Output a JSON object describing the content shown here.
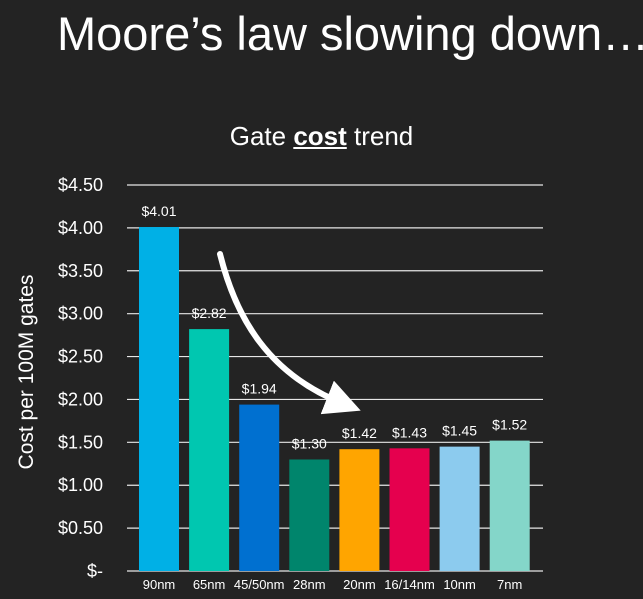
{
  "slide": {
    "title": "Moore’s law slowing down…"
  },
  "chart_data": {
    "type": "bar",
    "title_parts": [
      "Gate ",
      "cost",
      " trend"
    ],
    "title_emphasis": "cost",
    "xlabel": "",
    "ylabel": "Cost per 100M gates",
    "categories": [
      "90nm",
      "65nm",
      "45/50nm",
      "28nm",
      "20nm",
      "16/14nm",
      "10nm",
      "7nm"
    ],
    "values": [
      4.01,
      2.82,
      1.94,
      1.3,
      1.42,
      1.43,
      1.45,
      1.52
    ],
    "data_labels": [
      "$4.01",
      "$2.82",
      "$1.94",
      "$1.30",
      "$1.42",
      "$1.43",
      "$1.45",
      "$1.52"
    ],
    "colors": [
      "#00b0e6",
      "#00c7b0",
      "#0070d0",
      "#00856c",
      "#ffa500",
      "#e5004e",
      "#8ccbee",
      "#84d6c9"
    ],
    "ylim": [
      0,
      4.5
    ],
    "yticks": [
      0,
      0.5,
      1.0,
      1.5,
      2.0,
      2.5,
      3.0,
      3.5,
      4.0,
      4.5
    ],
    "ytick_labels": [
      "$-",
      "$0.50",
      "$1.00",
      "$1.50",
      "$2.00",
      "$2.50",
      "$3.00",
      "$3.50",
      "$4.00",
      "$4.50"
    ],
    "grid": true,
    "legend": "none",
    "annotation": "curved-arrow"
  }
}
